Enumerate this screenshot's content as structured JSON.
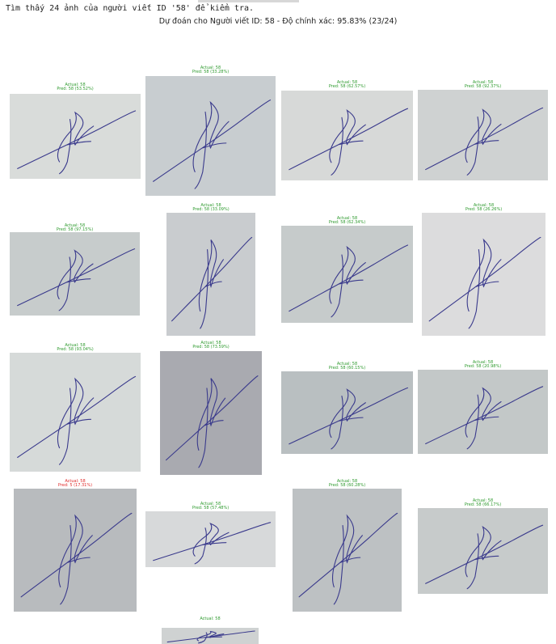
{
  "console_text": "Tìm thấy 24 ảnh của người viết ID '58' để kiểm tra.",
  "title": "Dự đoán cho Người viết ID: 58 - Độ chính xác: 95.83% (23/24)",
  "cells": [
    {
      "actual": "Actual: 58",
      "pred": "Pred: 58 (53.52%)",
      "correct": true
    },
    {
      "actual": "Actual: 58",
      "pred": "Pred: 58 (33.28%)",
      "correct": true
    },
    {
      "actual": "Actual: 58",
      "pred": "Pred: 58 (62.57%)",
      "correct": true
    },
    {
      "actual": "Actual: 58",
      "pred": "Pred: 58 (92.37%)",
      "correct": true
    },
    {
      "actual": "Actual: 58",
      "pred": "Pred: 58 (97.15%)",
      "correct": true
    },
    {
      "actual": "Actual: 58",
      "pred": "Pred: 58 (33.09%)",
      "correct": true
    },
    {
      "actual": "Actual: 58",
      "pred": "Pred: 58 (62.34%)",
      "correct": true
    },
    {
      "actual": "Actual: 58",
      "pred": "Pred: 58 (26.26%)",
      "correct": true
    },
    {
      "actual": "Actual: 58",
      "pred": "Pred: 58 (93.04%)",
      "correct": true
    },
    {
      "actual": "Actual: 58",
      "pred": "Pred: 58 (73.59%)",
      "correct": true
    },
    {
      "actual": "Actual: 58",
      "pred": "Pred: 58 (60.15%)",
      "correct": true
    },
    {
      "actual": "Actual: 58",
      "pred": "Pred: 58 (20.98%)",
      "correct": true
    },
    {
      "actual": "Actual: 58",
      "pred": "Pred: 5 (17.31%)",
      "correct": false
    },
    {
      "actual": "Actual: 58",
      "pred": "Pred: 58 (57.48%)",
      "correct": true
    },
    {
      "actual": "Actual: 58",
      "pred": "Pred: 58 (60.28%)",
      "correct": true
    },
    {
      "actual": "Actual: 58",
      "pred": "Pred: 58 (66.17%)",
      "correct": true
    },
    {
      "actual": "Actual: 58",
      "pred": "",
      "correct": true
    }
  ],
  "colors": {
    "correct": "#2e9a2e",
    "wrong": "#e02a2a",
    "ink": "#3a3a8c"
  }
}
